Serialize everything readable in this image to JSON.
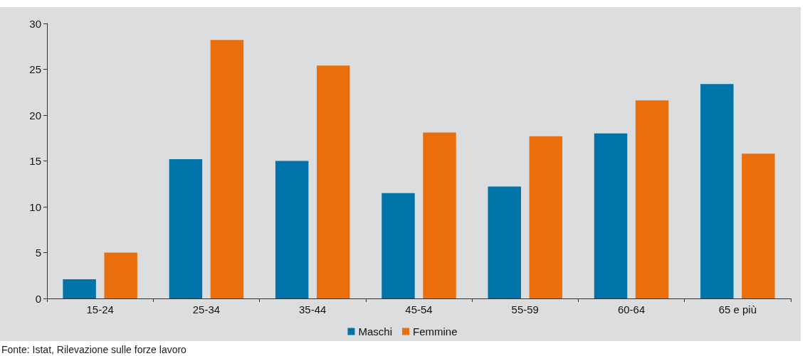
{
  "chart_data": {
    "type": "bar",
    "categories": [
      "15-24",
      "25-34",
      "35-44",
      "45-54",
      "55-59",
      "60-64",
      "65 e più"
    ],
    "series": [
      {
        "name": "Maschi",
        "color": "#0073a9",
        "values": [
          2.1,
          15.2,
          15.0,
          11.5,
          12.2,
          18.0,
          23.4
        ]
      },
      {
        "name": "Femmine",
        "color": "#ea6e0b",
        "values": [
          5.0,
          28.2,
          25.4,
          18.1,
          17.7,
          21.6,
          15.8
        ]
      }
    ],
    "ylim": [
      0,
      30
    ],
    "yticks": [
      0,
      5,
      10,
      15,
      20,
      25,
      30
    ],
    "legend": "bottom",
    "annotations": [
      "Fonte: Istat, Rilevazione sulle forze lavoro"
    ]
  }
}
